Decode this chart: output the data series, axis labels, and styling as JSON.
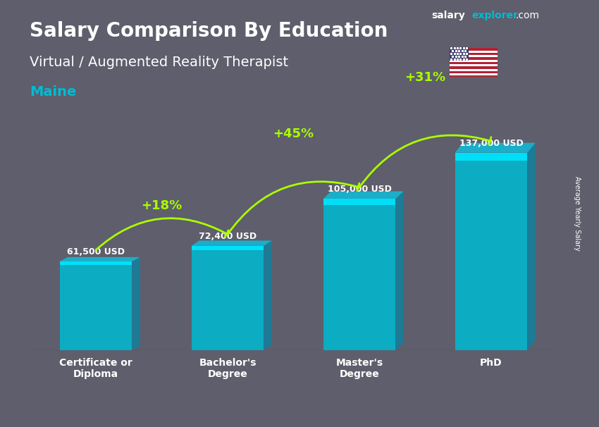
{
  "title": "Salary Comparison By Education",
  "subtitle": "Virtual / Augmented Reality Therapist",
  "location": "Maine",
  "ylabel": "Average Yearly Salary",
  "categories": [
    "Certificate or\nDiploma",
    "Bachelor's\nDegree",
    "Master's\nDegree",
    "PhD"
  ],
  "values": [
    61500,
    72400,
    105000,
    137000
  ],
  "value_labels": [
    "61,500 USD",
    "72,400 USD",
    "105,000 USD",
    "137,000 USD"
  ],
  "pct_changes": [
    "+18%",
    "+45%",
    "+31%"
  ],
  "bar_color": "#00bcd4",
  "bar_color_top": "#00e5ff",
  "pct_color": "#aaff00",
  "title_color": "#ffffff",
  "subtitle_color": "#ffffff",
  "location_color": "#00bcd4",
  "value_label_color": "#ffffff",
  "background_color": "#2a2a2a",
  "ylim": [
    0,
    160000
  ],
  "brand_text": "salaryexplorer.com",
  "brand_salary": "salary",
  "brand_explorer": "explorer"
}
